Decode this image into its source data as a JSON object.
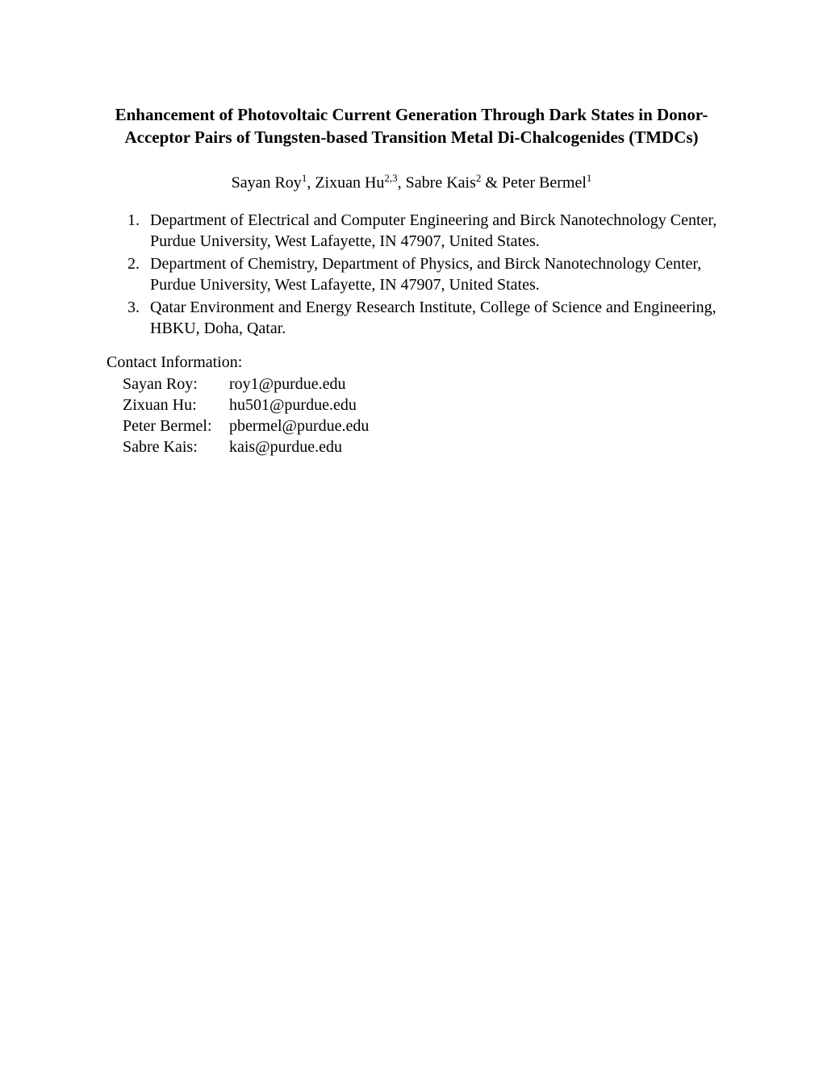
{
  "title": "Enhancement of Photovoltaic Current Generation Through Dark States in Donor-Acceptor Pairs of Tungsten-based Transition Metal Di-Chalcogenides (TMDCs)",
  "authors": {
    "a1_name": "Sayan Roy",
    "a1_sup": "1",
    "a2_name": "Zixuan Hu",
    "a2_sup": "2,3",
    "a3_name": "Sabre Kais",
    "a3_sup": "2",
    "a4_name": "Peter Bermel",
    "a4_sup": "1"
  },
  "affiliations": {
    "n1": "1.",
    "t1": "Department of Electrical and Computer Engineering and Birck Nanotechnology Center, Purdue University, West Lafayette, IN 47907, United States.",
    "n2": "2.",
    "t2": "Department of Chemistry, Department of Physics, and Birck Nanotechnology Center, Purdue University, West Lafayette, IN 47907, United States.",
    "n3": "3.",
    "t3": "Qatar Environment and Energy Research Institute, College of Science and Engineering, HBKU, Doha, Qatar."
  },
  "contact": {
    "heading": "Contact Information:",
    "c1_name": "Sayan Roy:",
    "c1_email": "roy1@purdue.edu",
    "c2_name": "Zixuan Hu:",
    "c2_email": "hu501@purdue.edu",
    "c3_name": "Peter Bermel:",
    "c3_email": "pbermel@purdue.edu",
    "c4_name": "Sabre Kais:",
    "c4_email": "kais@purdue.edu"
  }
}
